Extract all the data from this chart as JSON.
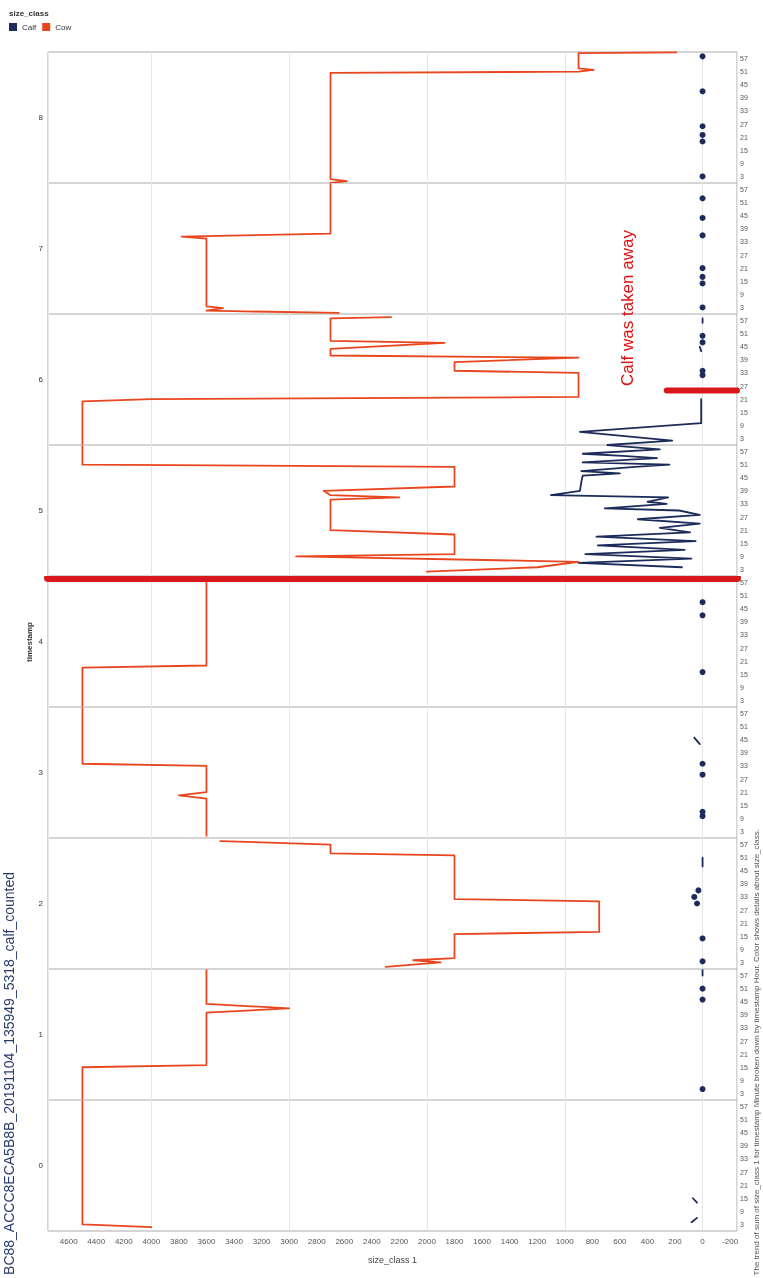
{
  "chart_data": [
    {
      "type": "line",
      "ylabel": "8",
      "grid": "x",
      "marker": "none",
      "line_style": "solid",
      "tick_labels": "y",
      "legend": "top left",
      "legend_title": "size_class",
      "xlim": [
        4750,
        -250
      ],
      "xticks": [
        -200,
        0,
        200,
        400,
        600,
        800,
        1000,
        1200,
        1400,
        1600,
        1800,
        2000,
        2200,
        2400,
        2600,
        2800,
        3000,
        3200,
        3400,
        3600,
        3800,
        4000,
        4200,
        4400,
        4600
      ],
      "ylim": [
        0,
        60
      ],
      "yticks": [
        3,
        9,
        15,
        21,
        27,
        33,
        39,
        45,
        51,
        57
      ],
      "series": [
        {
          "name": "Calf",
          "type": "scatter",
          "marker": "circle",
          "color": "#1c2b5a",
          "x": [
            0,
            0,
            0,
            0,
            0,
            0
          ],
          "values": [
            3,
            19,
            22,
            26,
            42,
            58
          ]
        },
        {
          "name": "Cow",
          "color": "#e8461e",
          "x": [
            2700,
            2580,
            2700,
            2700,
            900,
            790,
            900,
            900,
            190
          ],
          "values": [
            0,
            0.9,
            1.8,
            50.4,
            51,
            51.8,
            52.5,
            59.5,
            59.8
          ]
        }
      ]
    },
    {
      "type": "line",
      "ylabel": "7",
      "grid": "x",
      "marker": "none",
      "line_style": "solid",
      "tick_labels": "y",
      "xlim": [
        4750,
        -250
      ],
      "xticks": [
        -200,
        0,
        200,
        400,
        600,
        800,
        1000,
        1200,
        1400,
        1600,
        1800,
        2000,
        2200,
        2400,
        2600,
        2800,
        3000,
        3200,
        3400,
        3600,
        3800,
        4000,
        4200,
        4400,
        4600
      ],
      "ylim": [
        0,
        60
      ],
      "yticks": [
        3,
        9,
        15,
        21,
        27,
        33,
        39,
        45,
        51,
        57
      ],
      "series": [
        {
          "type": "scatter",
          "marker": "circle",
          "color": "#1c2b5a",
          "x": [
            0,
            0,
            0,
            0,
            0,
            0,
            0
          ],
          "values": [
            3,
            14,
            17,
            21,
            36,
            44,
            53
          ]
        },
        {
          "color": "#e8461e",
          "x": [
            2640,
            3600,
            3480,
            3600,
            3600,
            3780,
            2700,
            2700
          ],
          "values": [
            0.5,
            1.5,
            2.7,
            3.5,
            34.5,
            35.4,
            36.8,
            59.5
          ]
        }
      ]
    },
    {
      "type": "line",
      "ylabel": "6",
      "grid": "x",
      "marker": "none",
      "line_style": "solid",
      "tick_labels": "y",
      "xlim": [
        4750,
        -250
      ],
      "xticks": [
        -200,
        0,
        200,
        400,
        600,
        800,
        1000,
        1200,
        1400,
        1600,
        1800,
        2000,
        2200,
        2400,
        2600,
        2800,
        3000,
        3200,
        3400,
        3600,
        3800,
        4000,
        4200,
        4400,
        4600
      ],
      "ylim": [
        0,
        60
      ],
      "yticks": [
        3,
        9,
        15,
        21,
        27,
        33,
        39,
        45,
        51,
        57
      ],
      "annotations": [
        {
          "text": "Calf was taken away",
          "x": 260,
          "y": 25
        }
      ],
      "series": [
        {
          "color": "#1c2b5a",
          "x": [
            690,
            220,
            890,
            10,
            10,
            10,
            null,
            10,
            20,
            null,
            0,
            0
          ],
          "values": [
            0,
            2,
            6,
            10,
            15,
            21,
            null,
            43,
            45,
            null,
            56,
            58
          ]
        },
        {
          "type": "scatter",
          "marker": "circle",
          "color": "#1c2b5a",
          "x": [
            0,
            0,
            0,
            0
          ],
          "values": [
            32,
            34,
            47,
            50
          ]
        },
        {
          "color": "#e8461e",
          "x": [
            4500,
            4500,
            4000,
            900,
            900,
            1800,
            1800,
            900,
            2700,
            2700,
            1870,
            2700,
            2700,
            2260
          ],
          "values": [
            0.5,
            20,
            21,
            22,
            33,
            34,
            38,
            40,
            41,
            44,
            46.8,
            47.7,
            58,
            58.6
          ]
        },
        {
          "color": "#d7191c",
          "x": [
            -250,
            260
          ],
          "values": [
            25,
            25
          ]
        }
      ]
    },
    {
      "type": "line",
      "ylabel": "5",
      "grid": "x",
      "marker": "none",
      "line_style": "solid",
      "tick_labels": "y",
      "xlim": [
        4750,
        -250
      ],
      "xticks": [
        -200,
        0,
        200,
        400,
        600,
        800,
        1000,
        1200,
        1400,
        1600,
        1800,
        2000,
        2200,
        2400,
        2600,
        2800,
        3000,
        3200,
        3400,
        3600,
        3800,
        4000,
        4200,
        4400,
        4600
      ],
      "ylim": [
        0,
        60
      ],
      "yticks": [
        3,
        9,
        15,
        21,
        27,
        33,
        39,
        45,
        51,
        57
      ],
      "series": [
        {
          "color": "#1c2b5a",
          "x": [
            150,
            900,
            80,
            850,
            130,
            760,
            50,
            770,
            90,
            310,
            20,
            470,
            20,
            170,
            710,
            260,
            400,
            250,
            1100,
            890,
            880,
            870,
            600,
            880,
            490,
            240,
            870,
            330,
            580,
            870,
            310,
            690
          ],
          "values": [
            4,
            6,
            8,
            10,
            12,
            14,
            16,
            18,
            20,
            22,
            24,
            26,
            28,
            30,
            31,
            33,
            34,
            36,
            37,
            39,
            43,
            46,
            47,
            48,
            50,
            51,
            52,
            54,
            55,
            56,
            58,
            59.9
          ]
        },
        {
          "color": "#e8461e",
          "x": [
            2000,
            1200,
            900,
            2950,
            1800,
            1800,
            2700,
            2700,
            2200,
            2700,
            2750,
            1800,
            1800,
            4500,
            4500
          ],
          "values": [
            2,
            4,
            6.5,
            9,
            10,
            19,
            21,
            35,
            36,
            37,
            39,
            41,
            50,
            51,
            59.5
          ]
        }
      ]
    },
    {
      "type": "line",
      "title": "timestamp",
      "ylabel": "4",
      "grid": "x",
      "marker": "none",
      "line_style": "solid",
      "tick_labels": "y",
      "xlim": [
        4750,
        -250
      ],
      "xticks": [
        -200,
        0,
        200,
        400,
        600,
        800,
        1000,
        1200,
        1400,
        1600,
        1800,
        2000,
        2200,
        2400,
        2600,
        2800,
        3000,
        3200,
        3400,
        3600,
        3800,
        4000,
        4200,
        4400,
        4600
      ],
      "ylim": [
        0,
        60
      ],
      "yticks": [
        3,
        9,
        15,
        21,
        27,
        33,
        39,
        45,
        51,
        57
      ],
      "ref_lines": [
        {
          "axis": "y",
          "value": 59,
          "color": "#d7191c"
        }
      ],
      "series": [
        {
          "type": "scatter",
          "marker": "circle",
          "color": "#1c2b5a",
          "x": [
            0,
            0,
            0
          ],
          "values": [
            16,
            42,
            48
          ]
        },
        {
          "color": "#e8461e",
          "x": [
            4500,
            4500,
            3600,
            3600
          ],
          "values": [
            0.5,
            18,
            19,
            59.5
          ]
        }
      ]
    },
    {
      "type": "line",
      "ylabel": "3",
      "grid": "x",
      "marker": "none",
      "line_style": "solid",
      "tick_labels": "y",
      "xlim": [
        4750,
        -250
      ],
      "xticks": [
        -200,
        0,
        200,
        400,
        600,
        800,
        1000,
        1200,
        1400,
        1600,
        1800,
        2000,
        2200,
        2400,
        2600,
        2800,
        3000,
        3200,
        3400,
        3600,
        3800,
        4000,
        4200,
        4400,
        4600
      ],
      "ylim": [
        0,
        60
      ],
      "yticks": [
        3,
        9,
        15,
        21,
        27,
        33,
        39,
        45,
        51,
        57
      ],
      "series": [
        {
          "color": "#1c2b5a",
          "x": [
            20,
            60
          ],
          "values": [
            43,
            46
          ]
        },
        {
          "type": "scatter",
          "marker": "circle",
          "color": "#1c2b5a",
          "x": [
            0,
            0,
            0,
            0
          ],
          "values": [
            10,
            12,
            29,
            34
          ]
        },
        {
          "color": "#e8461e",
          "x": [
            3600,
            3600,
            3800,
            3600,
            3600,
            4500,
            4500
          ],
          "values": [
            1,
            18,
            19.5,
            21,
            33,
            34,
            59.5
          ]
        }
      ]
    },
    {
      "type": "line",
      "ylabel": "2",
      "grid": "x",
      "marker": "none",
      "line_style": "solid",
      "tick_labels": "y",
      "xlim": [
        4750,
        -250
      ],
      "xticks": [
        -200,
        0,
        200,
        400,
        600,
        800,
        1000,
        1200,
        1400,
        1600,
        1800,
        2000,
        2200,
        2400,
        2600,
        2800,
        3000,
        3200,
        3400,
        3600,
        3800,
        4000,
        4200,
        4400,
        4600
      ],
      "ylim": [
        0,
        60
      ],
      "yticks": [
        3,
        9,
        15,
        21,
        27,
        33,
        39,
        45,
        51,
        57
      ],
      "series": [
        {
          "color": "#1c2b5a",
          "x": [
            0,
            0,
            0
          ],
          "values": [
            47,
            49,
            51
          ]
        },
        {
          "type": "scatter",
          "marker": "circle",
          "color": "#1c2b5a",
          "x": [
            0,
            0,
            40,
            60,
            30
          ],
          "values": [
            3.5,
            14,
            30,
            33,
            36
          ]
        },
        {
          "color": "#e8461e",
          "x": [
            2300,
            1900,
            2100,
            1800,
            1800,
            750,
            750,
            1800,
            1800,
            2700,
            2700,
            3500
          ],
          "values": [
            1,
            3,
            4,
            5,
            16,
            17,
            31,
            32,
            52,
            53,
            57,
            58.6
          ]
        }
      ]
    },
    {
      "type": "line",
      "ylabel": "1",
      "grid": "x",
      "marker": "none",
      "line_style": "solid",
      "tick_labels": "y",
      "xlim": [
        4750,
        -250
      ],
      "xticks": [
        -200,
        0,
        200,
        400,
        600,
        800,
        1000,
        1200,
        1400,
        1600,
        1800,
        2000,
        2200,
        2400,
        2600,
        2800,
        3000,
        3200,
        3400,
        3600,
        3800,
        4000,
        4200,
        4400,
        4600
      ],
      "ylim": [
        0,
        60
      ],
      "yticks": [
        3,
        9,
        15,
        21,
        27,
        33,
        39,
        45,
        51,
        57
      ],
      "series": [
        {
          "color": "#1c2b5a",
          "x": [
            0,
            0
          ],
          "values": [
            57,
            59.5
          ]
        },
        {
          "type": "scatter",
          "marker": "circle",
          "color": "#1c2b5a",
          "x": [
            0,
            0,
            0
          ],
          "values": [
            5,
            46,
            51
          ]
        },
        {
          "color": "#e8461e",
          "x": [
            4500,
            4500,
            3600,
            3600,
            3000,
            3600,
            3600
          ],
          "values": [
            0.5,
            15,
            16,
            40,
            42,
            44,
            59.5
          ]
        }
      ]
    },
    {
      "type": "line",
      "title": "BC88_ACCC8ECA5B8B_20191104_135949_5318_calf_counted",
      "ylabel": "0",
      "xlabel": "size_class 1",
      "grid": "x",
      "marker": "none",
      "line_style": "solid",
      "xlim": [
        4750,
        -250
      ],
      "xticks": [
        -200,
        0,
        200,
        400,
        600,
        800,
        1000,
        1200,
        1400,
        1600,
        1800,
        2000,
        2200,
        2400,
        2600,
        2800,
        3000,
        3200,
        3400,
        3600,
        3800,
        4000,
        4200,
        4400,
        4600
      ],
      "ylim": [
        0,
        60
      ],
      "yticks": [
        3,
        9,
        15,
        21,
        27,
        33,
        39,
        45,
        51,
        57
      ],
      "annotations": [
        "The trend of sum of size_class 1 for timestamp Minute broken down by timestamp Hour.  Color shows details about size_class."
      ],
      "series": [
        {
          "color": "#1c2b5a",
          "x": [
            80,
            40,
            null,
            40,
            70
          ],
          "values": [
            4,
            6,
            null,
            13,
            15
          ]
        },
        {
          "color": "#e8461e",
          "x": [
            4000,
            4500,
            4500
          ],
          "values": [
            1.8,
            3,
            59.5
          ]
        }
      ]
    }
  ]
}
